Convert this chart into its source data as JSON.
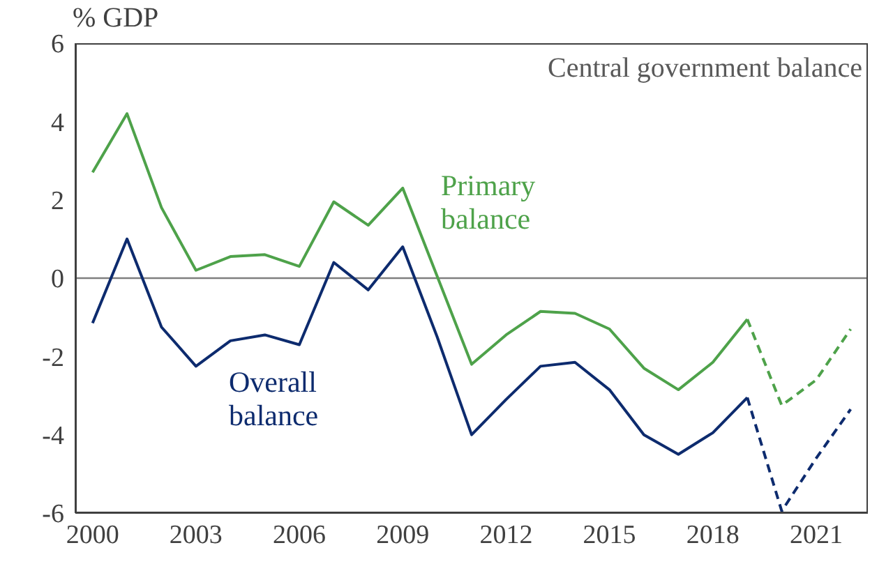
{
  "chart_data": {
    "type": "line",
    "title": "Central government balance",
    "ylabel": "% GDP",
    "x": [
      2000,
      2001,
      2002,
      2003,
      2004,
      2005,
      2006,
      2007,
      2008,
      2009,
      2010,
      2011,
      2012,
      2013,
      2014,
      2015,
      2016,
      2017,
      2018,
      2019,
      2020,
      2021,
      2022
    ],
    "series": [
      {
        "name": "Primary balance",
        "color": "#4ea24a",
        "line_style": "solid",
        "values": [
          2.7,
          4.2,
          1.8,
          0.2,
          0.55,
          0.6,
          0.3,
          1.95,
          1.35,
          2.3,
          0.05,
          -2.2,
          -1.45,
          -0.85,
          -0.9,
          -1.3,
          -2.3,
          -2.85,
          -2.15,
          -1.05,
          null,
          null,
          null
        ]
      },
      {
        "color": "#4ea24a",
        "line_style": "dashed",
        "values": [
          null,
          null,
          null,
          null,
          null,
          null,
          null,
          null,
          null,
          null,
          null,
          null,
          null,
          null,
          null,
          null,
          null,
          null,
          null,
          -1.05,
          -3.25,
          -2.6,
          -1.3
        ]
      },
      {
        "name": "Overall balance",
        "color": "#0d2b6e",
        "line_style": "solid",
        "values": [
          -1.15,
          1.0,
          -1.25,
          -2.25,
          -1.6,
          -1.45,
          -1.7,
          0.4,
          -0.3,
          0.8,
          -1.5,
          -4.0,
          -3.1,
          -2.25,
          -2.15,
          -2.85,
          -4.0,
          -4.5,
          -3.95,
          -3.05,
          null,
          null,
          null
        ]
      },
      {
        "color": "#0d2b6e",
        "line_style": "dashed",
        "values": [
          null,
          null,
          null,
          null,
          null,
          null,
          null,
          null,
          null,
          null,
          null,
          null,
          null,
          null,
          null,
          null,
          null,
          null,
          null,
          -3.05,
          -5.95,
          -4.6,
          -3.35
        ]
      }
    ],
    "xlim": [
      1999.5,
      2022.5
    ],
    "xticks": [
      2000,
      2003,
      2006,
      2009,
      2012,
      2015,
      2018,
      2021
    ],
    "ylim": [
      -6,
      6
    ],
    "yticks": [
      -6,
      -4,
      -2,
      0,
      2,
      4,
      6
    ],
    "ref_lines": [
      {
        "axis": "y",
        "value": 0,
        "color": "#7f7f7f"
      }
    ],
    "marker": "none"
  }
}
